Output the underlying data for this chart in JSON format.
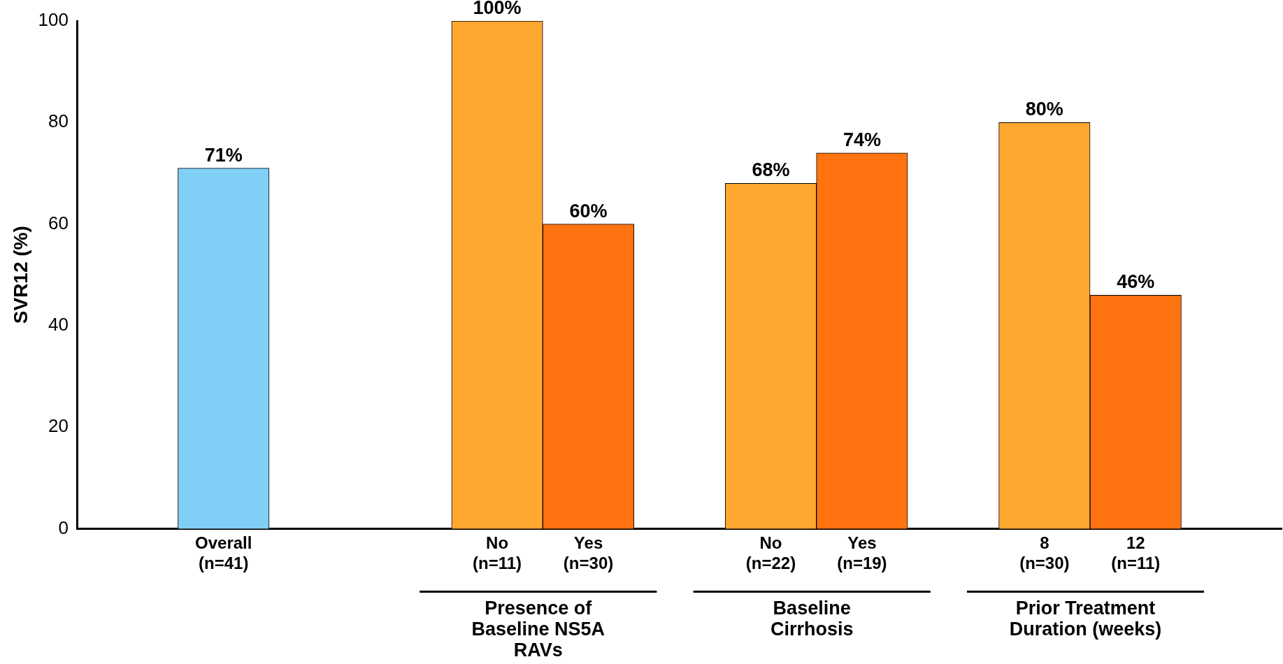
{
  "chart_data": {
    "type": "bar",
    "ylabel": "SVR12 (%)",
    "categories": [
      "Overall\n(n=41)",
      null,
      null,
      "No\n(n=11)",
      "Yes\n(n=30)",
      null,
      "No\n(n=22)",
      "Yes\n(n=19)",
      null,
      "8\n(n=30)",
      "12\n(n=11)"
    ],
    "values": [
      71,
      null,
      null,
      100,
      60,
      null,
      68,
      74,
      null,
      80,
      46
    ],
    "colors": [
      "#7fcff7",
      null,
      null,
      "#ffa830",
      "#ff7410",
      null,
      "#ffa830",
      "#ff7410",
      null,
      "#ffa830",
      "#ff7410"
    ],
    "value_labels": [
      "71%",
      null,
      null,
      "100%",
      "60%",
      null,
      "68%",
      "74%",
      null,
      "80%",
      "46%"
    ],
    "ylim": [
      0,
      100
    ],
    "yticks": [
      0,
      20,
      40,
      60,
      80,
      100
    ],
    "grid": false,
    "legend": false,
    "annotations": [
      "Presence of\nBaseline NS5A\nRAVs",
      "Baseline\nCirrhosis",
      "Prior Treatment\nDuration (weeks)"
    ]
  }
}
